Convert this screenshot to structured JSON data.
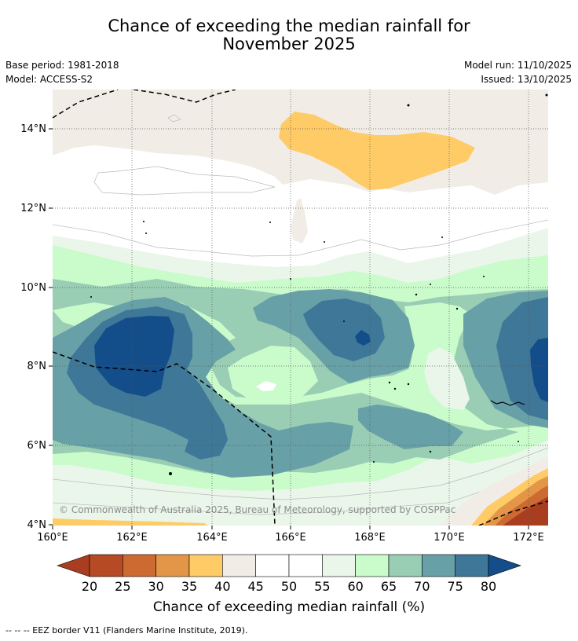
{
  "header": {
    "title_line1": "Chance of exceeding the median rainfall for",
    "title_line2": "November 2025",
    "base_period": "Base period: 1981-2018",
    "model": "Model: ACCESS-S2",
    "model_run": "Model run: 11/10/2025",
    "issued": "Issued: 13/10/2025"
  },
  "map": {
    "lon_ticks": [
      "160°E",
      "162°E",
      "164°E",
      "166°E",
      "168°E",
      "170°E",
      "172°E"
    ],
    "lat_ticks": [
      "14°N",
      "12°N",
      "10°N",
      "8°N",
      "6°N",
      "4°N"
    ],
    "copyright": "© Commonwealth of Australia 2025, Bureau of Meteorology, supported by COSPPac"
  },
  "colorbar": {
    "labels": [
      "20",
      "25",
      "30",
      "35",
      "40",
      "45",
      "50",
      "55",
      "60",
      "65",
      "70",
      "75",
      "80"
    ],
    "colors": [
      "#a93d20",
      "#b54a24",
      "#cd6a32",
      "#e39647",
      "#fecb66",
      "#f1ede6",
      "#ffffff",
      "#ffffff",
      "#e9f6e9",
      "#c9fbcb",
      "#99cdb4",
      "#68a0a7",
      "#3f7798",
      "#134e8b"
    ],
    "title": "Chance of exceeding median rainfall (%)"
  },
  "footer": {
    "text": "--  --  -- EEZ border V11 (Flanders Marine Institute, 2019)."
  }
}
